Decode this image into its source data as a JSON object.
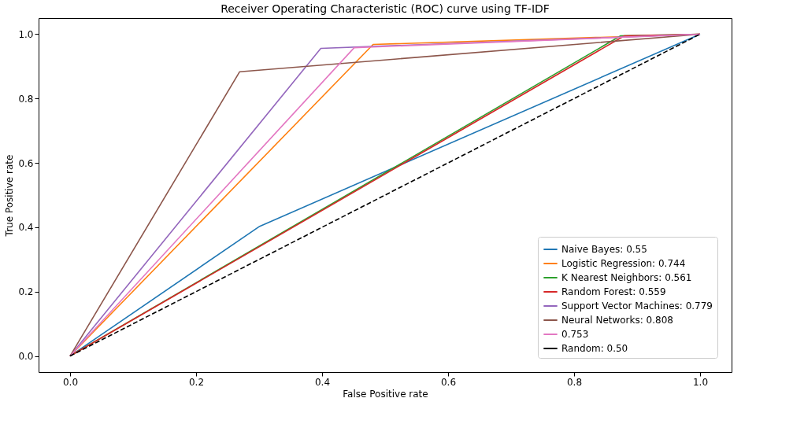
{
  "chart_data": {
    "type": "line",
    "title": "Receiver Operating Characteristic (ROC) curve using TF-IDF",
    "xlabel": "False Positive rate",
    "ylabel": "True Positive rate",
    "xlim": [
      -0.05,
      1.05
    ],
    "ylim": [
      -0.05,
      1.05
    ],
    "xticks": [
      {
        "value": 0,
        "label": "0.0"
      },
      0.2,
      0.4,
      0.6,
      0.8,
      {
        "value": 1,
        "label": "1.0"
      }
    ],
    "yticks": [
      {
        "value": 0,
        "label": "0.0"
      },
      0.2,
      0.4,
      0.6,
      0.8,
      {
        "value": 1,
        "label": "1.0"
      }
    ],
    "grid": false,
    "legend": "bottom right",
    "marker": "none",
    "series": [
      {
        "name": "Naive Bayes: 0.55",
        "color": "#1f77b4",
        "x": [
          0,
          0.301,
          1
        ],
        "values": [
          0,
          0.403,
          1
        ]
      },
      {
        "name": "Logistic Regression: 0.744",
        "color": "#ff7f0e",
        "x": [
          0,
          0.481,
          1
        ],
        "values": [
          0,
          0.968,
          1
        ]
      },
      {
        "name": "K Nearest Neighbors: 0.561",
        "color": "#2ca02c",
        "x": [
          0,
          0.874,
          1
        ],
        "values": [
          0,
          0.995,
          1
        ]
      },
      {
        "name": "Random Forest: 0.559",
        "color": "#d62728",
        "x": [
          0,
          0.88,
          1
        ],
        "values": [
          0,
          0.995,
          1
        ]
      },
      {
        "name": "Support Vector Machines: 0.779",
        "color": "#9467bd",
        "x": [
          0,
          0.398,
          1
        ],
        "values": [
          0,
          0.956,
          1
        ]
      },
      {
        "name": "Neural Networks: 0.808",
        "color": "#8c564b",
        "x": [
          0,
          0.269,
          1
        ],
        "values": [
          0,
          0.883,
          1
        ]
      },
      {
        "name": "0.753",
        "color": "#e377c2",
        "x": [
          0,
          0.451,
          1
        ],
        "values": [
          0,
          0.958,
          1
        ]
      },
      {
        "name": "Random: 0.50",
        "color": "#000000",
        "x": [
          0,
          1
        ],
        "values": [
          0,
          1
        ],
        "line_style": "dashed"
      }
    ]
  }
}
